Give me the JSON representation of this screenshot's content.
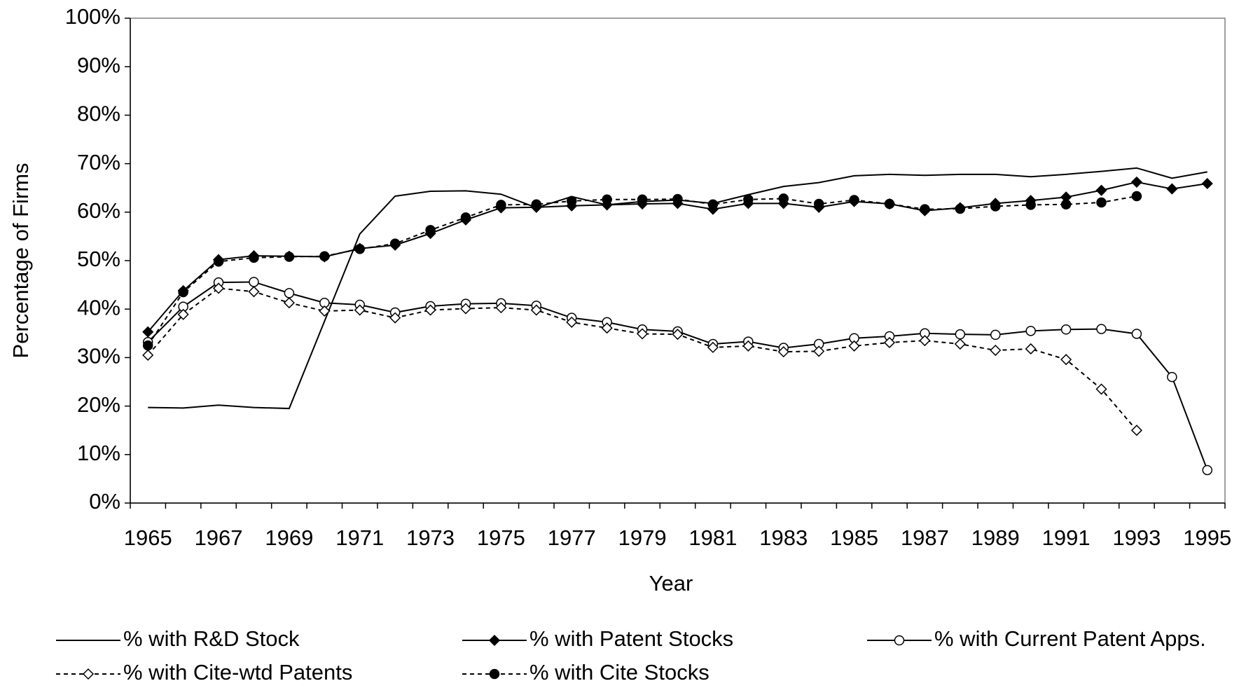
{
  "chart_data": {
    "type": "line",
    "y_label": "Percentage of Firms",
    "x_label": "Year",
    "categories": [
      "1965",
      null,
      "1967",
      null,
      "1969",
      null,
      "1971",
      null,
      "1973",
      null,
      "1975",
      null,
      "1977",
      null,
      "1979",
      null,
      "1981",
      null,
      "1983",
      null,
      "1985",
      null,
      "1987",
      null,
      "1989",
      null,
      "1991",
      null,
      "1993",
      null,
      "1995"
    ],
    "ylim": [
      0,
      100
    ],
    "yticks": [
      {
        "value": 0,
        "label": "0%"
      },
      {
        "value": 10,
        "label": "10%"
      },
      {
        "value": 20,
        "label": "20%"
      },
      {
        "value": 30,
        "label": "30%"
      },
      {
        "value": 40,
        "label": "40%"
      },
      {
        "value": 50,
        "label": "50%"
      },
      {
        "value": 60,
        "label": "60%"
      },
      {
        "value": 70,
        "label": "70%"
      },
      {
        "value": 80,
        "label": "80%"
      },
      {
        "value": 90,
        "label": "90%"
      },
      {
        "value": 100,
        "label": "100%"
      }
    ],
    "grid": false,
    "series": [
      {
        "name": "% with R&D Stock",
        "color": "#000000",
        "dash": false,
        "marker": "none",
        "marker_fill": "#000000",
        "values": [
          19.7,
          19.6,
          20.2,
          19.7,
          19.5,
          37.5,
          55.5,
          63.3,
          64.3,
          64.4,
          63.7,
          60.9,
          63.2,
          61.5,
          62.2,
          62.5,
          61.8,
          63.6,
          65.3,
          66.1,
          67.5,
          67.8,
          67.6,
          67.8,
          67.8,
          67.3,
          67.8,
          68.4,
          69.1,
          67.0,
          68.3
        ]
      },
      {
        "name": "% with Patent Stocks",
        "color": "#000000",
        "dash": false,
        "marker": "diamond",
        "marker_fill": "#000000",
        "values": [
          35.3,
          43.8,
          50.2,
          51.0,
          50.9,
          50.8,
          52.5,
          53.2,
          55.6,
          58.4,
          60.9,
          61.0,
          61.3,
          61.5,
          61.7,
          61.8,
          60.6,
          61.8,
          61.8,
          61.0,
          62.2,
          61.7,
          60.3,
          60.9,
          61.8,
          62.4,
          63.1,
          64.5,
          66.2,
          64.8,
          65.9
        ]
      },
      {
        "name": "% with Current Patent Apps.",
        "color": "#000000",
        "dash": false,
        "marker": "circle",
        "marker_fill": "#ffffff",
        "values": [
          33.2,
          40.5,
          45.5,
          45.6,
          43.3,
          41.3,
          40.9,
          39.3,
          40.6,
          41.1,
          41.2,
          40.7,
          38.2,
          37.3,
          35.8,
          35.4,
          32.8,
          33.3,
          32.0,
          32.8,
          34.0,
          34.4,
          35.0,
          34.8,
          34.7,
          35.5,
          35.8,
          35.9,
          34.9,
          26.0,
          6.8
        ]
      },
      {
        "name": "% with Cite-wtd Patents",
        "color": "#000000",
        "dash": true,
        "marker": "diamond",
        "marker_fill": "#ffffff",
        "values": [
          30.5,
          38.9,
          44.3,
          43.6,
          41.3,
          39.6,
          39.8,
          38.2,
          39.8,
          40.1,
          40.3,
          39.8,
          37.3,
          36.1,
          34.9,
          34.8,
          32.1,
          32.4,
          31.2,
          31.3,
          32.4,
          33.1,
          33.5,
          32.8,
          31.5,
          31.8,
          29.6,
          23.5,
          15.0,
          null,
          null
        ]
      },
      {
        "name": "% with Cite Stocks",
        "color": "#000000",
        "dash": true,
        "marker": "circle",
        "marker_fill": "#000000",
        "values": [
          32.5,
          43.5,
          49.8,
          50.6,
          50.8,
          50.9,
          52.4,
          53.5,
          56.3,
          58.9,
          61.5,
          61.6,
          62.3,
          62.6,
          62.6,
          62.7,
          61.6,
          62.6,
          62.8,
          61.7,
          62.5,
          61.7,
          60.6,
          60.7,
          61.2,
          61.5,
          61.6,
          62.0,
          63.3,
          null,
          null
        ]
      }
    ]
  }
}
